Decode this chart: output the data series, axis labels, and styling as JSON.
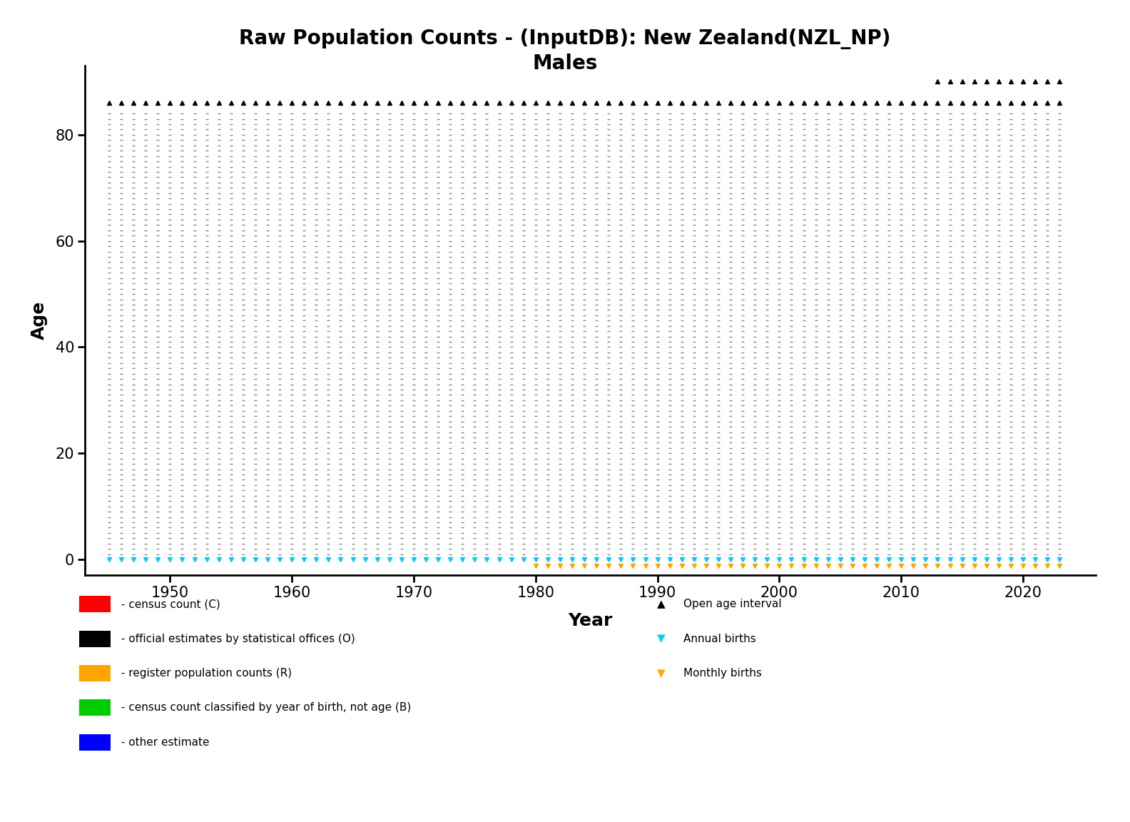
{
  "title_line1": "Raw Population Counts - (InputDB): New Zealand(NZL_NP)",
  "title_line2": "Males",
  "xlabel": "Year",
  "ylabel": "Age",
  "xlim": [
    1943,
    2026
  ],
  "ylim": [
    -3,
    93
  ],
  "xticks": [
    1950,
    1960,
    1970,
    1980,
    1990,
    2000,
    2010,
    2020
  ],
  "yticks": [
    0,
    20,
    40,
    60,
    80
  ],
  "year_start": 1945,
  "year_end": 2023,
  "age_start": 0,
  "age_end": 84,
  "open_age_low": 86,
  "open_age_high": 90,
  "open_age_high_year_start": 2013,
  "annual_births_year_start": 1945,
  "annual_births_year_end": 2023,
  "monthly_births_year_start": 1980,
  "monthly_births_year_end": 2023,
  "dot_color": "#888888",
  "triangle_color": "#000000",
  "cyan_color": "#00CCFF",
  "orange_color": "#FFA500",
  "background_color": "#FFFFFF",
  "legend_left_items": [
    {
      "color": "#FF0000",
      "label": " - census count (C)"
    },
    {
      "color": "#000000",
      "label": " - official estimates by statistical offices (O)"
    },
    {
      "color": "#FFA500",
      "label": " - register population counts (R)"
    },
    {
      "color": "#00CC00",
      "label": " - census count classified by year of birth, not age (B)"
    },
    {
      "color": "#0000FF",
      "label": " - other estimate"
    }
  ],
  "legend_right_items": [
    {
      "marker": "^",
      "color": "#000000",
      "fill": "#FFFFFF",
      "label": "Open age interval"
    },
    {
      "marker": "v",
      "color": "#00CCFF",
      "fill": "#00CCFF",
      "label": "Annual births"
    },
    {
      "marker": "v",
      "color": "#FFA500",
      "fill": "#FFA500",
      "label": "Monthly births"
    }
  ]
}
